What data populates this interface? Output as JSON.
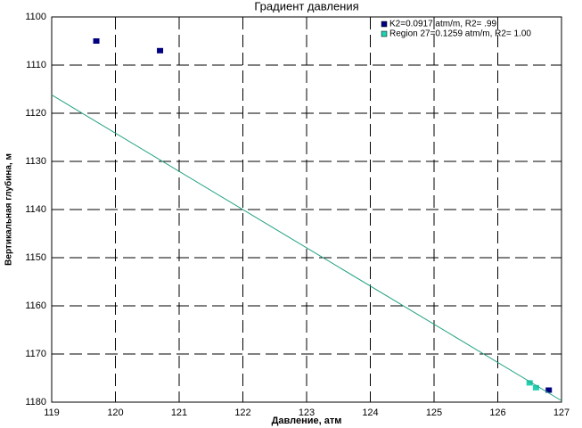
{
  "chart_data": {
    "type": "scatter",
    "title": "Градиент давления",
    "x_label": "Давление, атм",
    "y_label": "Вертикальная глубина, м",
    "xlim": [
      119,
      127
    ],
    "xticks": [
      119,
      120,
      121,
      122,
      123,
      124,
      125,
      126,
      127
    ],
    "ylim": [
      1180,
      1100
    ],
    "yticks": [
      1100,
      1110,
      1120,
      1130,
      1140,
      1150,
      1160,
      1170,
      1180
    ],
    "grid": true,
    "legend": "top-right",
    "series": [
      {
        "name": "K2=0.0917 atm/m, R2= .99",
        "color": "#000080",
        "mode": "markers",
        "x": [
          119.7,
          120.7,
          126.8
        ],
        "values": [
          1105,
          1107,
          1177.5
        ]
      },
      {
        "name": "Region 27=0.1259 atm/m, R2= 1.00",
        "color": "#20d0b0",
        "mode": "markers",
        "x": [
          126.5,
          126.6
        ],
        "values": [
          1176,
          1177
        ]
      },
      {
        "color": "#20a080",
        "mode": "line",
        "x": [
          119,
          127
        ],
        "values": [
          1116.2,
          1179.7
        ]
      }
    ]
  }
}
